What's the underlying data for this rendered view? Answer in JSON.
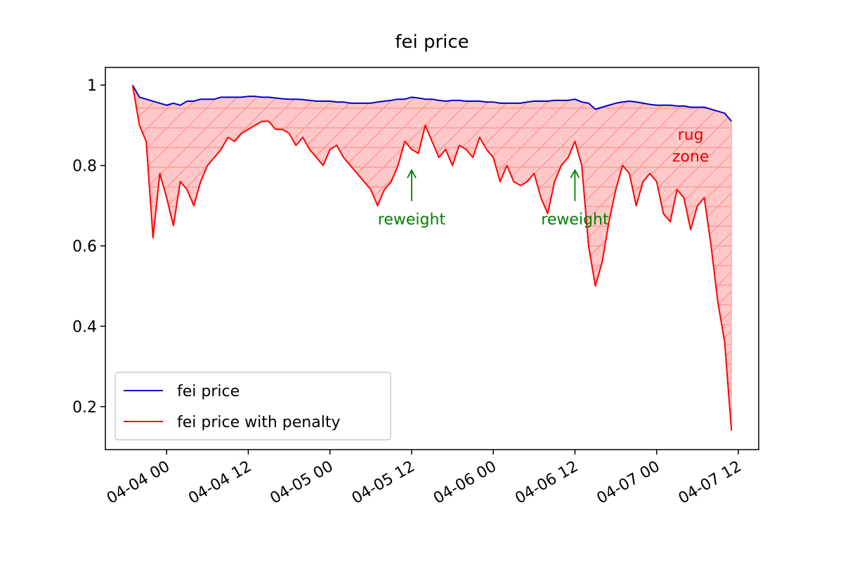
{
  "chart_data": {
    "type": "line",
    "title": "fei price",
    "x": [
      "04-03 19",
      "04-03 20",
      "04-03 21",
      "04-03 22",
      "04-03 23",
      "04-04 00",
      "04-04 01",
      "04-04 02",
      "04-04 03",
      "04-04 04",
      "04-04 05",
      "04-04 06",
      "04-04 07",
      "04-04 08",
      "04-04 09",
      "04-04 10",
      "04-04 11",
      "04-04 12",
      "04-04 13",
      "04-04 14",
      "04-04 15",
      "04-04 16",
      "04-04 17",
      "04-04 18",
      "04-04 19",
      "04-04 20",
      "04-04 21",
      "04-04 22",
      "04-04 23",
      "04-05 00",
      "04-05 01",
      "04-05 02",
      "04-05 03",
      "04-05 04",
      "04-05 05",
      "04-05 06",
      "04-05 07",
      "04-05 08",
      "04-05 09",
      "04-05 10",
      "04-05 11",
      "04-05 12",
      "04-05 13",
      "04-05 14",
      "04-05 15",
      "04-05 16",
      "04-05 17",
      "04-05 18",
      "04-05 19",
      "04-05 20",
      "04-05 21",
      "04-05 22",
      "04-05 23",
      "04-06 00",
      "04-06 01",
      "04-06 02",
      "04-06 03",
      "04-06 04",
      "04-06 05",
      "04-06 06",
      "04-06 07",
      "04-06 08",
      "04-06 09",
      "04-06 10",
      "04-06 11",
      "04-06 12",
      "04-06 13",
      "04-06 14",
      "04-06 15",
      "04-06 16",
      "04-06 17",
      "04-06 18",
      "04-06 19",
      "04-06 20",
      "04-06 21",
      "04-06 22",
      "04-06 23",
      "04-07 00",
      "04-07 01",
      "04-07 02",
      "04-07 03",
      "04-07 04",
      "04-07 05",
      "04-07 06",
      "04-07 07",
      "04-07 08",
      "04-07 09",
      "04-07 10",
      "04-07 11"
    ],
    "series": [
      {
        "name": "fei price",
        "color": "#0000cc",
        "values": [
          1.0,
          0.97,
          0.965,
          0.96,
          0.955,
          0.95,
          0.955,
          0.95,
          0.96,
          0.96,
          0.965,
          0.965,
          0.965,
          0.97,
          0.97,
          0.97,
          0.97,
          0.972,
          0.972,
          0.97,
          0.97,
          0.968,
          0.966,
          0.965,
          0.965,
          0.964,
          0.962,
          0.96,
          0.96,
          0.96,
          0.958,
          0.958,
          0.955,
          0.955,
          0.955,
          0.955,
          0.958,
          0.96,
          0.962,
          0.965,
          0.965,
          0.97,
          0.968,
          0.965,
          0.965,
          0.962,
          0.96,
          0.962,
          0.962,
          0.96,
          0.96,
          0.96,
          0.958,
          0.958,
          0.955,
          0.955,
          0.955,
          0.955,
          0.958,
          0.96,
          0.96,
          0.96,
          0.962,
          0.962,
          0.962,
          0.965,
          0.958,
          0.955,
          0.94,
          0.945,
          0.95,
          0.955,
          0.958,
          0.96,
          0.958,
          0.955,
          0.952,
          0.95,
          0.95,
          0.95,
          0.948,
          0.948,
          0.945,
          0.945,
          0.945,
          0.94,
          0.935,
          0.93,
          0.91
        ]
      },
      {
        "name": "fei price with penalty",
        "color": "#ff0000",
        "values": [
          1.0,
          0.9,
          0.86,
          0.62,
          0.78,
          0.72,
          0.65,
          0.76,
          0.74,
          0.7,
          0.76,
          0.8,
          0.82,
          0.84,
          0.87,
          0.86,
          0.88,
          0.89,
          0.9,
          0.91,
          0.91,
          0.89,
          0.89,
          0.88,
          0.85,
          0.87,
          0.84,
          0.82,
          0.8,
          0.84,
          0.85,
          0.82,
          0.8,
          0.78,
          0.76,
          0.74,
          0.7,
          0.74,
          0.76,
          0.8,
          0.86,
          0.84,
          0.83,
          0.9,
          0.86,
          0.82,
          0.84,
          0.8,
          0.85,
          0.84,
          0.82,
          0.87,
          0.84,
          0.82,
          0.76,
          0.8,
          0.76,
          0.75,
          0.76,
          0.78,
          0.72,
          0.68,
          0.76,
          0.8,
          0.82,
          0.86,
          0.8,
          0.6,
          0.5,
          0.56,
          0.66,
          0.74,
          0.8,
          0.78,
          0.7,
          0.76,
          0.78,
          0.76,
          0.68,
          0.66,
          0.74,
          0.72,
          0.64,
          0.7,
          0.72,
          0.6,
          0.46,
          0.36,
          0.14
        ]
      }
    ],
    "fill_between": true,
    "fill_color": "#ffc8c8",
    "hatch_color": "#ff9a9a",
    "xlim": [
      "04-03 15",
      "04-07 15"
    ],
    "xticks": [
      "04-04 00",
      "04-04 12",
      "04-05 00",
      "04-05 12",
      "04-06 00",
      "04-06 12",
      "04-07 00",
      "04-07 12"
    ],
    "ylim": [
      0.093,
      1.044
    ],
    "yticks": [
      0.2,
      0.4,
      0.6,
      0.8,
      1.0
    ],
    "grid": false,
    "legend": "lower left",
    "annotations": [
      {
        "text": "reweight",
        "x": "04-05 12",
        "y": 0.79,
        "color": "#008000",
        "arrow": true
      },
      {
        "text": "reweight",
        "x": "04-06 12",
        "y": 0.79,
        "color": "#008000",
        "arrow": true
      },
      {
        "text": "rug zone",
        "x": "04-07 05",
        "y": 0.85,
        "color": "#ee0000",
        "arrow": false
      }
    ]
  }
}
